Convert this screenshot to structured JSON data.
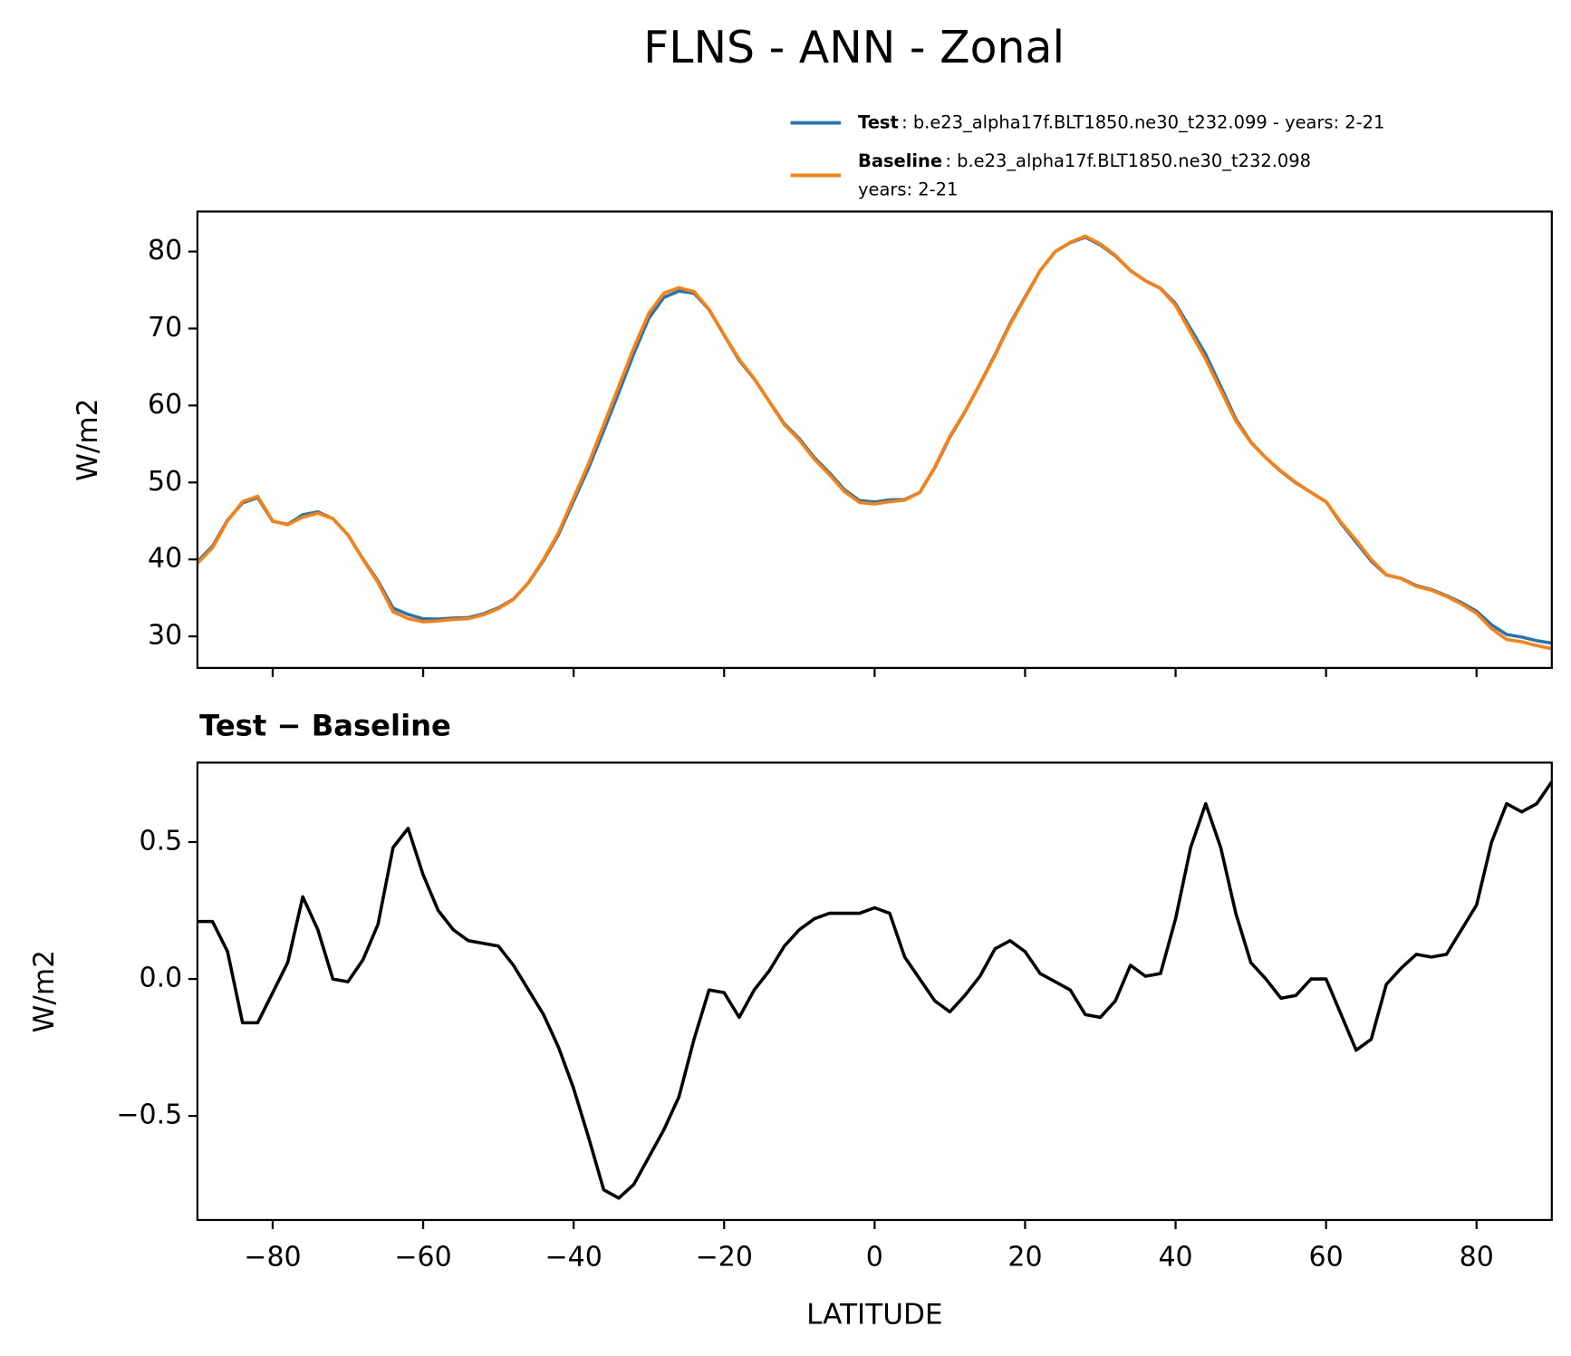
{
  "title": "FLNS - ANN - Zonal",
  "chart_data": [
    {
      "type": "line",
      "ylabel": "W/m2",
      "show_xticklabels": false,
      "x": [
        -90,
        -88,
        -86,
        -84,
        -82,
        -80,
        -78,
        -76,
        -74,
        -72,
        -70,
        -68,
        -66,
        -64,
        -62,
        -60,
        -58,
        -56,
        -54,
        -52,
        -50,
        -48,
        -46,
        -44,
        -42,
        -40,
        -38,
        -36,
        -34,
        -32,
        -30,
        -28,
        -26,
        -24,
        -22,
        -20,
        -18,
        -16,
        -14,
        -12,
        -10,
        -8,
        -6,
        -4,
        -2,
        0,
        2,
        4,
        6,
        8,
        10,
        12,
        14,
        16,
        18,
        20,
        22,
        24,
        26,
        28,
        30,
        32,
        34,
        36,
        38,
        40,
        42,
        44,
        46,
        48,
        50,
        52,
        54,
        56,
        58,
        60,
        62,
        64,
        66,
        68,
        70,
        72,
        74,
        76,
        78,
        80,
        82,
        84,
        86,
        88,
        90
      ],
      "series": [
        {
          "name": "Test",
          "label_lines": [
            ": b.e23_alpha17f.BLT1850.ne30_t232.099 - years: 2-21"
          ],
          "color": "#1f77b4",
          "values": [
            39.71,
            41.71,
            45.1,
            47.34,
            48.04,
            44.95,
            44.56,
            45.8,
            46.18,
            45.3,
            43.19,
            40.07,
            37.2,
            33.68,
            32.85,
            32.28,
            32.25,
            32.38,
            32.44,
            32.93,
            33.72,
            34.85,
            36.96,
            39.87,
            43.25,
            47.6,
            51.92,
            56.73,
            61.7,
            66.75,
            71.35,
            74.05,
            74.87,
            74.58,
            72.46,
            69.15,
            65.86,
            63.46,
            60.53,
            57.62,
            55.68,
            53.22,
            51.24,
            49.04,
            47.64,
            47.46,
            47.74,
            47.78,
            48.7,
            51.92,
            55.88,
            59.14,
            62.81,
            66.61,
            70.64,
            74.1,
            77.52,
            79.99,
            81.16,
            81.87,
            80.86,
            79.42,
            77.55,
            76.21,
            75.22,
            73.22,
            69.98,
            66.64,
            62.48,
            58.24,
            55.26,
            53.2,
            51.43,
            49.94,
            48.7,
            47.5,
            44.67,
            42.24,
            39.78,
            37.98,
            37.54,
            36.59,
            36.08,
            35.29,
            34.38,
            33.27,
            31.5,
            30.24,
            29.91,
            29.44,
            29.12
          ]
        },
        {
          "name": "Baseline",
          "label_lines": [
            ": b.e23_alpha17f.BLT1850.ne30_t232.098",
            "years: 2-21"
          ],
          "color": "#ff7f0e",
          "values": [
            39.5,
            41.5,
            45,
            47.5,
            48.2,
            45,
            44.5,
            45.5,
            46,
            45.3,
            43.2,
            40,
            37,
            33.2,
            32.3,
            31.9,
            32,
            32.2,
            32.3,
            32.8,
            33.6,
            34.8,
            37,
            40,
            43.5,
            48,
            52.5,
            57.5,
            62.5,
            67.5,
            72,
            74.6,
            75.3,
            74.8,
            72.5,
            69.2,
            66,
            63.5,
            60.5,
            57.5,
            55.5,
            53,
            51,
            48.8,
            47.4,
            47.2,
            47.5,
            47.7,
            48.7,
            52,
            56,
            59.2,
            62.8,
            66.5,
            70.5,
            74,
            77.5,
            80,
            81.2,
            82,
            81,
            79.5,
            77.5,
            76.2,
            75.2,
            73,
            69.5,
            66,
            62,
            58,
            55.2,
            53.2,
            51.5,
            50,
            48.7,
            47.5,
            44.8,
            42.5,
            40,
            38,
            37.5,
            36.5,
            36,
            35.2,
            34.2,
            33,
            31,
            29.6,
            29.3,
            28.8,
            28.4
          ]
        }
      ],
      "xlim": [
        -90,
        90
      ],
      "xticks": [
        -80,
        -60,
        -40,
        -20,
        0,
        20,
        40,
        60,
        80
      ],
      "ylim": [
        25.9,
        85.2
      ],
      "yticks": [
        30,
        40,
        50,
        60,
        70,
        80
      ]
    },
    {
      "type": "line",
      "title": "Test − Baseline",
      "ylabel": "W/m2",
      "xlabel": "LATITUDE",
      "show_xticklabels": true,
      "x": [
        -90,
        -88,
        -86,
        -84,
        -82,
        -80,
        -78,
        -76,
        -74,
        -72,
        -70,
        -68,
        -66,
        -64,
        -62,
        -60,
        -58,
        -56,
        -54,
        -52,
        -50,
        -48,
        -46,
        -44,
        -42,
        -40,
        -38,
        -36,
        -34,
        -32,
        -30,
        -28,
        -26,
        -24,
        -22,
        -20,
        -18,
        -16,
        -14,
        -12,
        -10,
        -8,
        -6,
        -4,
        -2,
        0,
        2,
        4,
        6,
        8,
        10,
        12,
        14,
        16,
        18,
        20,
        22,
        24,
        26,
        28,
        30,
        32,
        34,
        36,
        38,
        40,
        42,
        44,
        46,
        48,
        50,
        52,
        54,
        56,
        58,
        60,
        62,
        64,
        66,
        68,
        70,
        72,
        74,
        76,
        78,
        80,
        82,
        84,
        86,
        88,
        90
      ],
      "series": [
        {
          "color": "#000000",
          "values": [
            0.21,
            0.21,
            0.1,
            -0.16,
            -0.16,
            -0.05,
            0.06,
            0.3,
            0.18,
            0.0,
            -0.01,
            0.07,
            0.2,
            0.48,
            0.55,
            0.38,
            0.25,
            0.18,
            0.14,
            0.13,
            0.12,
            0.05,
            -0.04,
            -0.13,
            -0.25,
            -0.4,
            -0.58,
            -0.77,
            -0.8,
            -0.75,
            -0.65,
            -0.55,
            -0.43,
            -0.22,
            -0.04,
            -0.05,
            -0.14,
            -0.04,
            0.03,
            0.12,
            0.18,
            0.22,
            0.24,
            0.24,
            0.24,
            0.26,
            0.24,
            0.08,
            0.0,
            -0.08,
            -0.12,
            -0.06,
            0.01,
            0.11,
            0.14,
            0.1,
            0.02,
            -0.01,
            -0.04,
            -0.13,
            -0.14,
            -0.08,
            0.05,
            0.01,
            0.02,
            0.22,
            0.48,
            0.64,
            0.48,
            0.24,
            0.06,
            0.0,
            -0.07,
            -0.06,
            0.0,
            0.0,
            -0.13,
            -0.26,
            -0.22,
            -0.02,
            0.04,
            0.09,
            0.08,
            0.09,
            0.18,
            0.27,
            0.5,
            0.64,
            0.61,
            0.64,
            0.72
          ]
        }
      ],
      "xlim": [
        -90,
        90
      ],
      "xticks": [
        {
          "value": -80,
          "label": "−80"
        },
        {
          "value": -60,
          "label": "−60"
        },
        {
          "value": -40,
          "label": "−40"
        },
        {
          "value": -20,
          "label": "−20"
        },
        0,
        20,
        40,
        60,
        80
      ],
      "ylim": [
        -0.88,
        0.79
      ],
      "yticks": [
        {
          "value": -0.5,
          "label": "−0.5"
        },
        {
          "value": 0,
          "label": "0.0"
        },
        0.5
      ]
    }
  ]
}
